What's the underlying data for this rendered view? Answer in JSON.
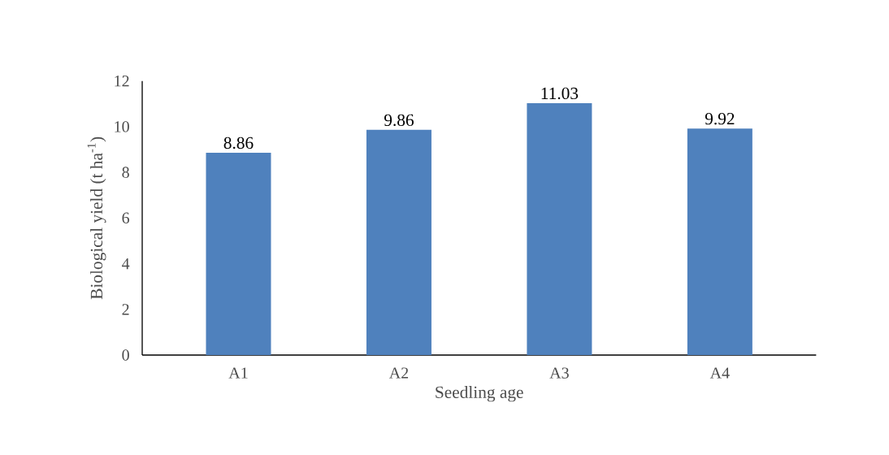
{
  "chart_data": {
    "type": "bar",
    "xlabel": "Seedling age",
    "ylabel": "Biological yield (t ha$^{-1}$)",
    "categories": [
      "A1",
      "A2",
      "A3",
      "A4"
    ],
    "values": [
      8.86,
      9.86,
      11.03,
      9.92
    ],
    "color": "#4f81bd",
    "ylim": [
      0,
      12
    ],
    "yticks": [
      0,
      2,
      4,
      6,
      8,
      10,
      12
    ],
    "grid": false,
    "data_labels": true
  }
}
